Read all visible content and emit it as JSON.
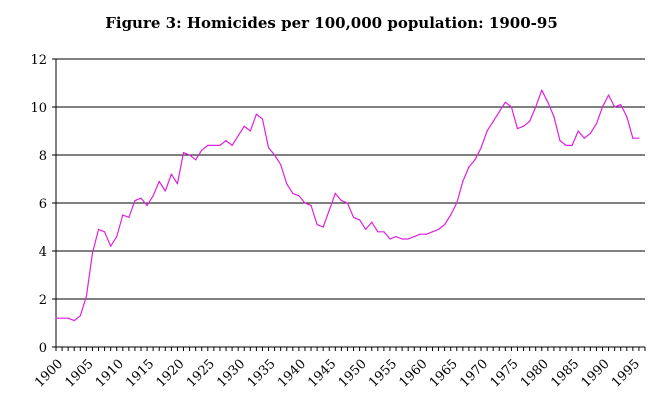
{
  "chart_data": {
    "type": "line",
    "title": "Figure 3:  Homicides per 100,000 population:  1900-95",
    "xlabel": "",
    "ylabel": "",
    "ylim": [
      0,
      12
    ],
    "xlim": [
      1900,
      1997
    ],
    "grid": true,
    "legend": "none",
    "y_ticks": [
      "0",
      "2",
      "4",
      "6",
      "8",
      "10",
      "12"
    ],
    "x_ticks": [
      "1900",
      "1905",
      "1910",
      "1915",
      "1920",
      "1925",
      "1930",
      "1935",
      "1940",
      "1945",
      "1950",
      "1955",
      "1960",
      "1965",
      "1970",
      "1975",
      "1980",
      "1985",
      "1990",
      "1995"
    ],
    "line_color": "#dd22dd",
    "series": [
      {
        "x": [
          1900,
          1901,
          1902,
          1903,
          1904,
          1905,
          1906,
          1907,
          1908,
          1909,
          1910,
          1911,
          1912,
          1913,
          1914,
          1915,
          1916,
          1917,
          1918,
          1919,
          1920,
          1921,
          1922,
          1923,
          1924,
          1925,
          1926,
          1927,
          1928,
          1929,
          1930,
          1931,
          1932,
          1933,
          1934,
          1935,
          1936,
          1937,
          1938,
          1939,
          1940,
          1941,
          1942,
          1943,
          1944,
          1945,
          1946,
          1947,
          1948,
          1949,
          1950,
          1951,
          1952,
          1953,
          1954,
          1955,
          1956,
          1957,
          1958,
          1959,
          1960,
          1961,
          1962,
          1963,
          1964,
          1965,
          1966,
          1967,
          1968,
          1969,
          1970,
          1971,
          1972,
          1973,
          1974,
          1975,
          1976,
          1977,
          1978,
          1979,
          1980,
          1981,
          1982,
          1983,
          1984,
          1985,
          1986,
          1987,
          1988,
          1989,
          1990,
          1991,
          1992,
          1993,
          1994,
          1995,
          1996
        ],
        "values": [
          1.2,
          1.2,
          1.2,
          1.1,
          1.3,
          2.1,
          3.9,
          4.9,
          4.8,
          4.2,
          4.6,
          5.5,
          5.4,
          6.1,
          6.2,
          5.9,
          6.3,
          6.9,
          6.5,
          7.2,
          6.8,
          8.1,
          8.0,
          7.8,
          8.2,
          8.4,
          8.4,
          8.4,
          8.6,
          8.4,
          8.8,
          9.2,
          9.0,
          9.7,
          9.5,
          8.3,
          8.0,
          7.6,
          6.8,
          6.4,
          6.3,
          6.0,
          5.9,
          5.1,
          5.0,
          5.7,
          6.4,
          6.1,
          6.0,
          5.4,
          5.3,
          4.9,
          5.2,
          4.8,
          4.8,
          4.5,
          4.6,
          4.5,
          4.5,
          4.6,
          4.7,
          4.7,
          4.8,
          4.9,
          5.1,
          5.5,
          6.0,
          6.9,
          7.5,
          7.8,
          8.3,
          9.0,
          9.4,
          9.8,
          10.2,
          10.0,
          9.1,
          9.2,
          9.4,
          10.0,
          10.7,
          10.2,
          9.6,
          8.6,
          8.4,
          8.4,
          9.0,
          8.7,
          8.9,
          9.3,
          10.0,
          10.5,
          10.0,
          10.1,
          9.6,
          8.7,
          8.7
        ]
      }
    ]
  }
}
